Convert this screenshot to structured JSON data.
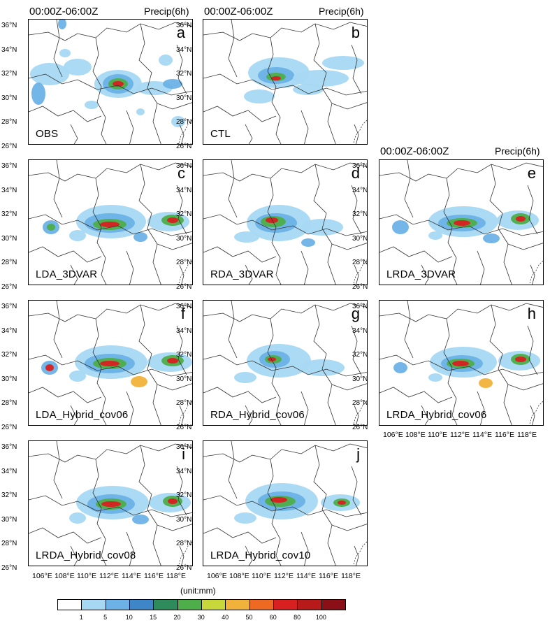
{
  "header": {
    "time_label": "00:00Z-06:00Z",
    "var_label": "Precip(6h)"
  },
  "panels": [
    {
      "letter": "a",
      "name": "OBS"
    },
    {
      "letter": "b",
      "name": "CTL"
    },
    {
      "letter": "c",
      "name": "LDA_3DVAR"
    },
    {
      "letter": "d",
      "name": "RDA_3DVAR"
    },
    {
      "letter": "e",
      "name": "LRDA_3DVAR"
    },
    {
      "letter": "f",
      "name": "LDA_Hybrid_cov06"
    },
    {
      "letter": "g",
      "name": "RDA_Hybrid_cov06"
    },
    {
      "letter": "h",
      "name": "LRDA_Hybrid_cov06"
    },
    {
      "letter": "i",
      "name": "LRDA_Hybrid_cov08"
    },
    {
      "letter": "j",
      "name": "LRDA_Hybrid_cov10"
    }
  ],
  "lat_ticks": [
    "36°N",
    "34°N",
    "32°N",
    "30°N",
    "28°N",
    "26°N"
  ],
  "lon_ticks": [
    "106°E",
    "108°E",
    "110°E",
    "112°E",
    "114°E",
    "116°E",
    "118°E"
  ],
  "colorbar": {
    "unit_label": "(unit:mm)",
    "levels": [
      "1",
      "5",
      "10",
      "15",
      "20",
      "30",
      "40",
      "50",
      "60",
      "80",
      "100"
    ],
    "colors": [
      "#ffffff",
      "#a6d8f3",
      "#6cb2e6",
      "#3f86c8",
      "#2e8c5c",
      "#4dae4a",
      "#c8d83a",
      "#f0b23a",
      "#ee6a22",
      "#d82020",
      "#b81a1a",
      "#8a0f16"
    ]
  }
}
